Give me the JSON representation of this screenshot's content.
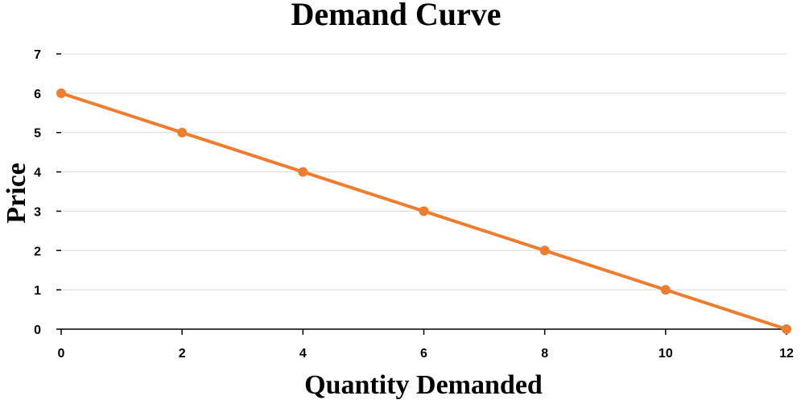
{
  "chart_data": {
    "type": "line",
    "title": "Demand Curve",
    "xlabel": "Quantity Demanded",
    "ylabel": "Price",
    "xlim": [
      0,
      12
    ],
    "ylim": [
      0,
      7
    ],
    "x_ticks": [
      0,
      2,
      4,
      6,
      8,
      10,
      12
    ],
    "y_ticks": [
      0,
      1,
      2,
      3,
      4,
      5,
      6,
      7
    ],
    "grid": true,
    "legend": "none",
    "series": [
      {
        "color": "#ed7d31",
        "x": [
          0,
          2,
          4,
          6,
          8,
          10,
          12
        ],
        "y": [
          6,
          5,
          4,
          3,
          2,
          1,
          0
        ]
      }
    ]
  }
}
